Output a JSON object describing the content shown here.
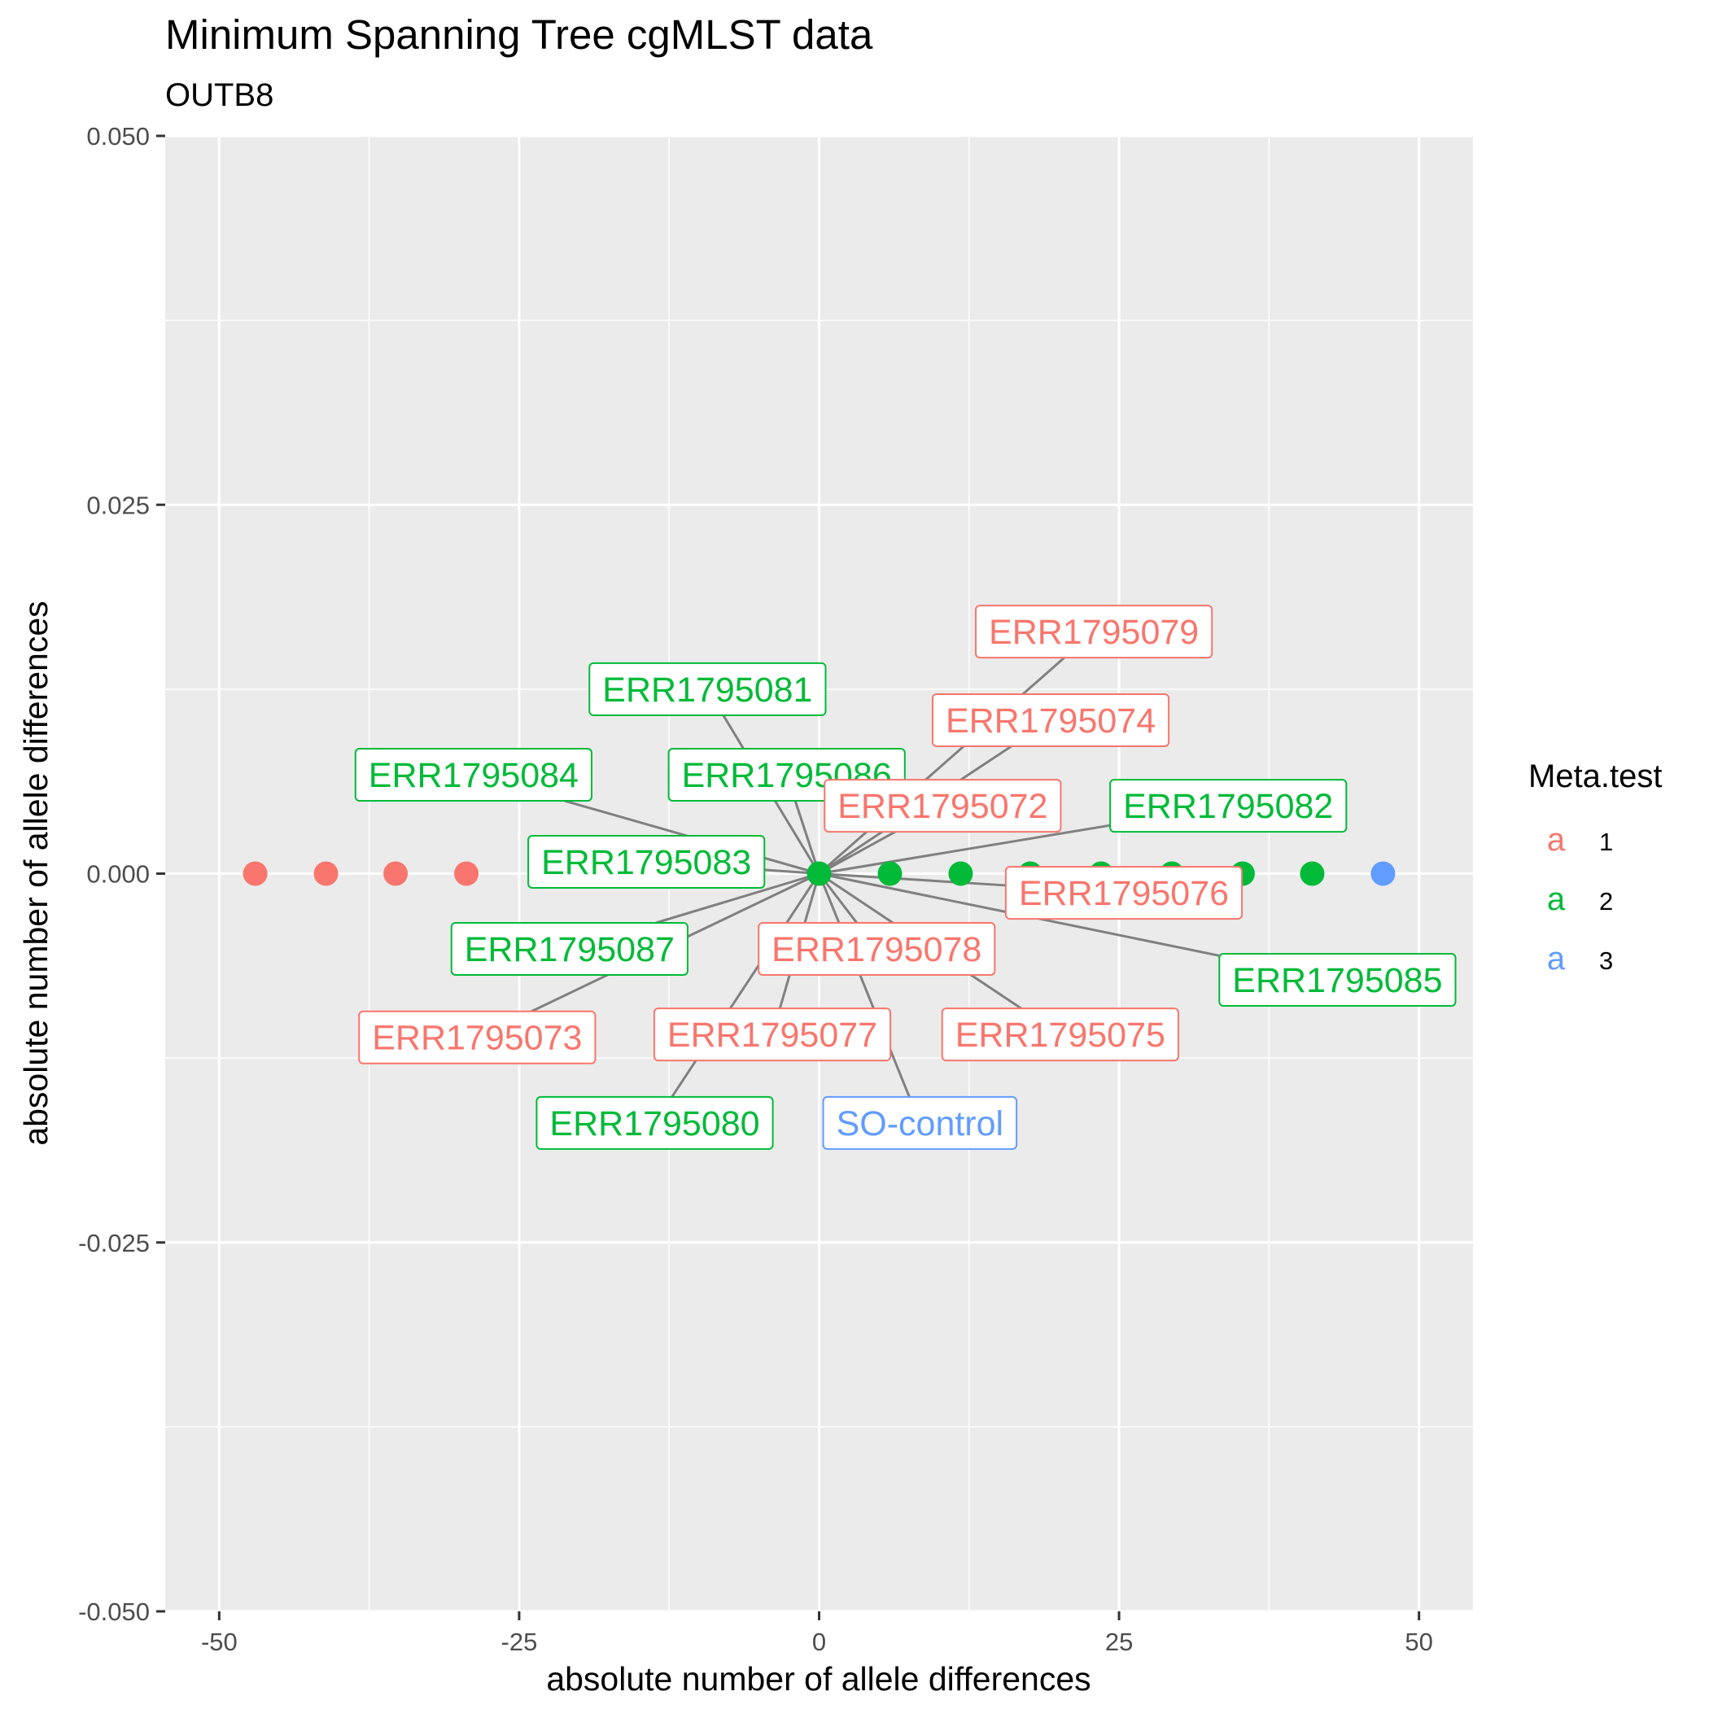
{
  "chart_data": {
    "type": "scatter",
    "title": "Minimum Spanning Tree cgMLST data",
    "subtitle": "OUTB8",
    "xlabel": "absolute number of allele differences",
    "ylabel": "absolute number of allele differences",
    "xlim": [
      -54.5,
      54.5
    ],
    "ylim": [
      -0.05,
      0.05
    ],
    "x_ticks": [
      -50,
      -25,
      0,
      25,
      50
    ],
    "x_tick_labels": [
      "-50",
      "-25",
      "0",
      "25",
      "50"
    ],
    "y_ticks": [
      -0.05,
      -0.025,
      0,
      0.025,
      0.05
    ],
    "y_tick_labels": [
      "-0.050",
      "-0.025",
      "0.000",
      "0.025",
      "0.050"
    ],
    "x_minor": [
      -37.5,
      -12.5,
      12.5,
      37.5
    ],
    "y_minor": [
      -0.0375,
      -0.0125,
      0.0125,
      0.0375
    ],
    "grid": true,
    "colors": {
      "1": "#F8766D",
      "2": "#00BA38",
      "3": "#619CFF"
    },
    "legend": {
      "title": "Meta.test",
      "position": "right",
      "key_glyph": "a",
      "entries": [
        {
          "label": "1",
          "group": "1"
        },
        {
          "label": "2",
          "group": "2"
        },
        {
          "label": "3",
          "group": "3"
        }
      ]
    },
    "points": [
      {
        "x": -47,
        "y": 0,
        "group": "1"
      },
      {
        "x": -41.1,
        "y": 0,
        "group": "1"
      },
      {
        "x": -35.3,
        "y": 0,
        "group": "1"
      },
      {
        "x": -29.4,
        "y": 0,
        "group": "1"
      },
      {
        "x": 0,
        "y": 0,
        "group": "2"
      },
      {
        "x": 5.9,
        "y": 0,
        "group": "2"
      },
      {
        "x": 11.8,
        "y": 0,
        "group": "2"
      },
      {
        "x": 17.6,
        "y": 0,
        "group": "2"
      },
      {
        "x": 23.5,
        "y": 0,
        "group": "2"
      },
      {
        "x": 29.4,
        "y": 0,
        "group": "2"
      },
      {
        "x": 35.3,
        "y": 0,
        "group": "2"
      },
      {
        "x": 41.1,
        "y": 0,
        "group": "2"
      },
      {
        "x": 47,
        "y": 0,
        "group": "3"
      }
    ],
    "labels": [
      {
        "text": "ERR1795079",
        "group": "1",
        "x": 22.9,
        "y": 0.0164
      },
      {
        "text": "ERR1795081",
        "group": "2",
        "x": -9.3,
        "y": 0.0125
      },
      {
        "text": "ERR1795074",
        "group": "1",
        "x": 19.3,
        "y": 0.0104
      },
      {
        "text": "ERR1795084",
        "group": "2",
        "x": -28.8,
        "y": 0.0067
      },
      {
        "text": "ERR1795086",
        "group": "2",
        "x": -2.7,
        "y": 0.0067
      },
      {
        "text": "ERR1795072",
        "group": "1",
        "x": 10.3,
        "y": 0.0046
      },
      {
        "text": "ERR1795082",
        "group": "2",
        "x": 34.1,
        "y": 0.0046
      },
      {
        "text": "ERR1795083",
        "group": "2",
        "x": -14.4,
        "y": 0.0008
      },
      {
        "text": "ERR1795076",
        "group": "1",
        "x": 25.4,
        "y": -0.0013
      },
      {
        "text": "ERR1795087",
        "group": "2",
        "x": -20.8,
        "y": -0.0051
      },
      {
        "text": "ERR1795078",
        "group": "1",
        "x": 4.8,
        "y": -0.0051
      },
      {
        "text": "ERR1795085",
        "group": "2",
        "x": 43.2,
        "y": -0.0072
      },
      {
        "text": "ERR1795073",
        "group": "1",
        "x": -28.5,
        "y": -0.0111
      },
      {
        "text": "ERR1795077",
        "group": "1",
        "x": -3.9,
        "y": -0.0109
      },
      {
        "text": "ERR1795075",
        "group": "1",
        "x": 20.1,
        "y": -0.0109
      },
      {
        "text": "ERR1795080",
        "group": "2",
        "x": -13.7,
        "y": -0.0169
      },
      {
        "text": "SO-control",
        "group": "3",
        "x": 8.4,
        "y": -0.0169
      }
    ]
  }
}
